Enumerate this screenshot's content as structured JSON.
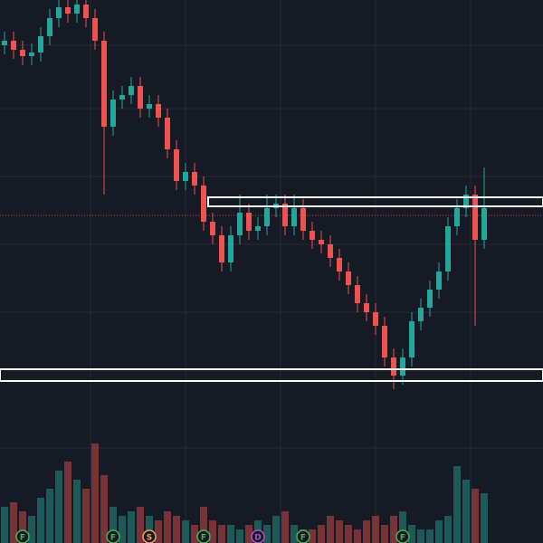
{
  "chart_data": {
    "type": "candlestick",
    "up_color": "#26a69a",
    "down_color": "#ef5350",
    "background": "#161a25",
    "ylim": [
      0,
      100
    ],
    "open": [
      90,
      91,
      89,
      87.6,
      88.4,
      92,
      96,
      98.4,
      97,
      99,
      96,
      91,
      72,
      78,
      79,
      81,
      76,
      77,
      74,
      67,
      60,
      62,
      59,
      51,
      48,
      42,
      48,
      53,
      49,
      50,
      54,
      55,
      50,
      54,
      49,
      47,
      46,
      43,
      40,
      37,
      33,
      31,
      28,
      21,
      17,
      21,
      29,
      32,
      36,
      40,
      50,
      54,
      57,
      47
    ],
    "high": [
      93,
      93,
      91,
      90.4,
      94,
      98,
      100.4,
      100.4,
      101,
      101,
      98,
      93,
      80,
      81,
      83,
      83,
      79,
      79,
      76,
      69,
      64,
      64,
      61,
      53,
      50,
      50,
      57,
      55,
      52,
      57,
      57,
      57,
      57,
      56,
      51,
      49,
      48,
      45,
      42,
      39,
      35,
      33,
      30,
      23,
      23,
      31,
      34,
      38,
      42,
      52,
      56,
      59,
      59,
      63
    ],
    "low": [
      88,
      87,
      85.6,
      85.6,
      86.4,
      90,
      94,
      95,
      95,
      94,
      89,
      57,
      70,
      76,
      77,
      74,
      74,
      72,
      65,
      58,
      58,
      57,
      49,
      46,
      40,
      40,
      46,
      47,
      47,
      48,
      52,
      48,
      48,
      47,
      45,
      44,
      41,
      38,
      35,
      31,
      29,
      26,
      19,
      14,
      15,
      19,
      27,
      30,
      34,
      38,
      48,
      52,
      28,
      45
    ],
    "close": [
      91,
      89,
      87.6,
      88.4,
      92,
      96,
      98.4,
      97,
      99,
      96,
      91,
      72,
      78,
      79,
      81,
      76,
      77,
      74,
      67,
      60,
      62,
      59,
      51,
      48,
      42,
      48,
      53,
      49,
      50,
      54,
      55,
      50,
      54,
      49,
      47,
      46,
      43,
      40,
      37,
      33,
      31,
      28,
      21,
      17,
      21,
      29,
      32,
      36,
      40,
      50,
      54,
      57,
      47,
      54
    ],
    "volume": [
      40,
      45,
      35,
      30,
      50,
      60,
      80,
      90,
      70,
      60,
      110,
      75,
      40,
      30,
      35,
      40,
      30,
      25,
      35,
      30,
      25,
      20,
      40,
      25,
      20,
      20,
      15,
      20,
      25,
      20,
      30,
      35,
      20,
      15,
      15,
      20,
      30,
      25,
      20,
      15,
      25,
      30,
      20,
      30,
      35,
      20,
      15,
      15,
      25,
      30,
      85,
      70,
      60,
      55
    ],
    "volume_ylim": [
      0,
      130
    ],
    "price_line": 52.4,
    "zones": [
      {
        "start_index": 23,
        "low": 54.4,
        "high": 56.4
      },
      {
        "start_index": 0,
        "low": 15.8,
        "high": 18.4
      }
    ],
    "events": [
      {
        "index": 2,
        "label": "F",
        "color": "#4caf50"
      },
      {
        "index": 12,
        "label": "F",
        "color": "#4caf50"
      },
      {
        "index": 16,
        "label": "S",
        "color": "#f0a060"
      },
      {
        "index": 22,
        "label": "F",
        "color": "#4caf50"
      },
      {
        "index": 28,
        "label": "D",
        "color": "#b04fc8"
      },
      {
        "index": 33,
        "label": "F",
        "color": "#4caf50"
      },
      {
        "index": 44,
        "label": "F",
        "color": "#4caf50"
      }
    ]
  }
}
